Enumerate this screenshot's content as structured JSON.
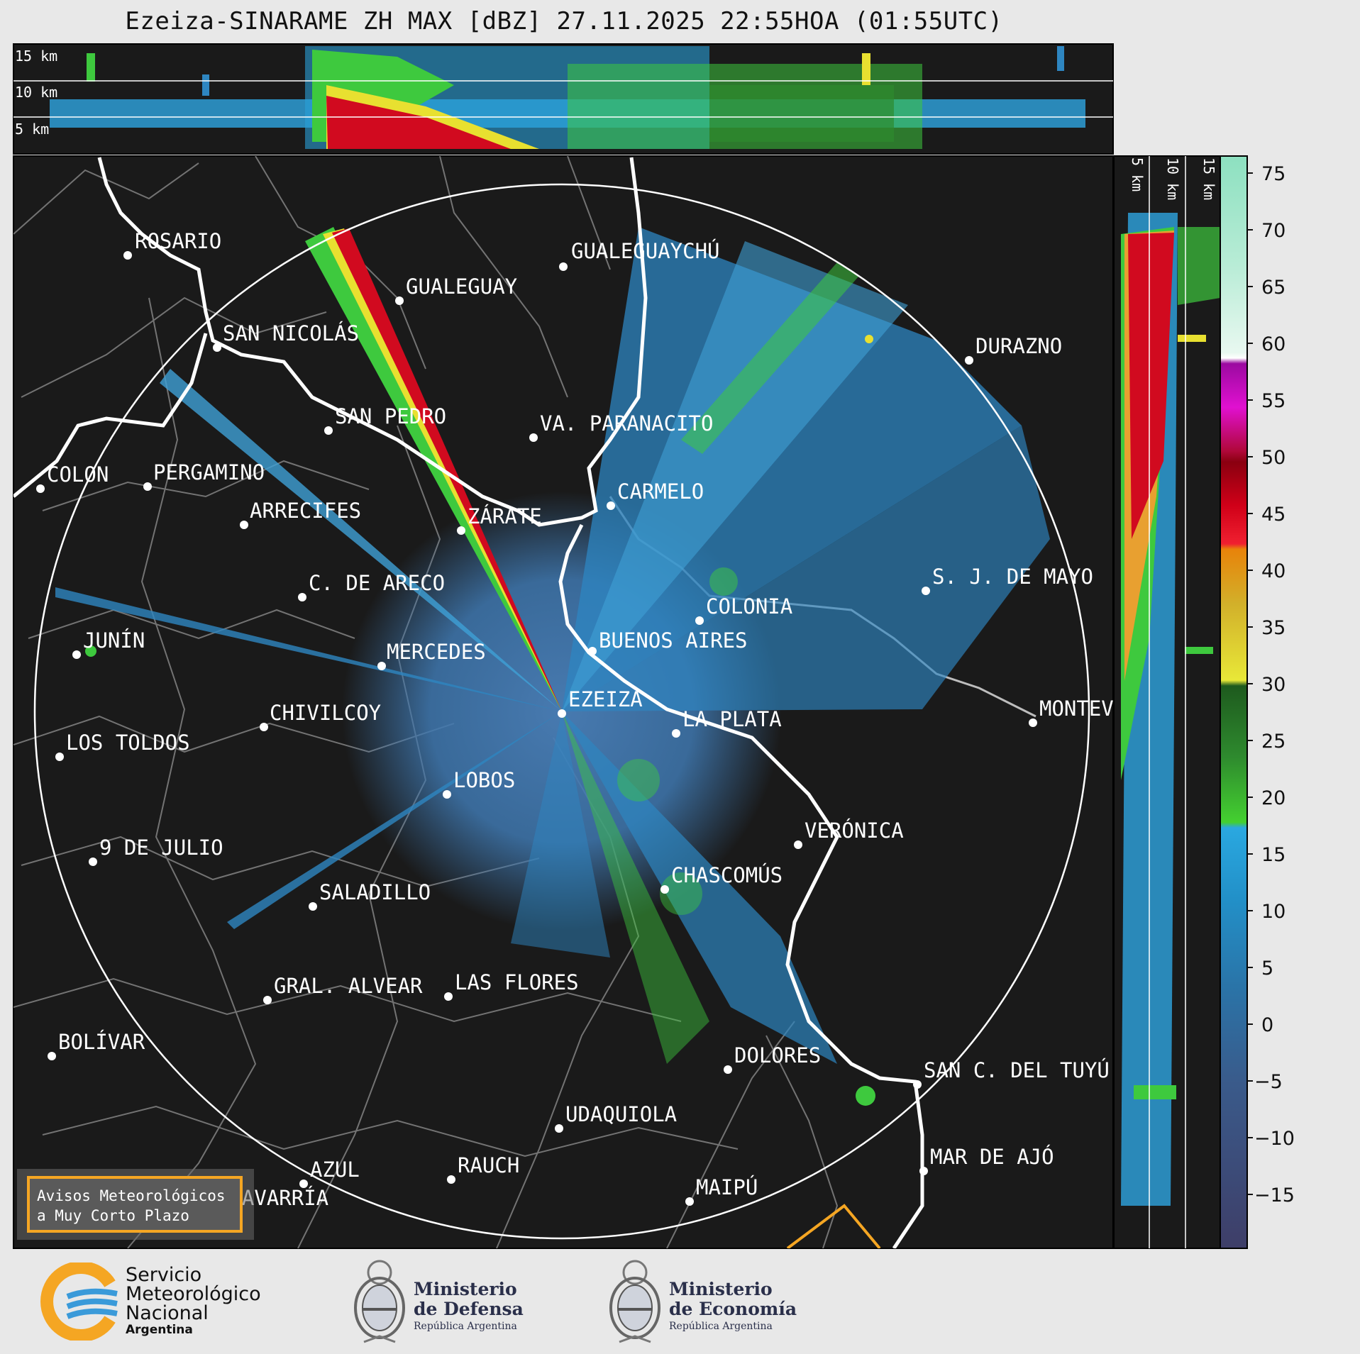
{
  "title": "Ezeiza-SINARAME ZH MAX [dBZ] 27.11.2025 22:55HOA (01:55UTC)",
  "height_labels_top": [
    "15 km",
    "10 km",
    "5 km"
  ],
  "height_labels_side": [
    "5 km",
    "10 km",
    "15 km"
  ],
  "cities": [
    {
      "name": "ROSARIO"
    },
    {
      "name": "GUALEGUAYCHÚ"
    },
    {
      "name": "GUALEGUAY"
    },
    {
      "name": "SAN NICOLÁS"
    },
    {
      "name": "DURAZNO"
    },
    {
      "name": "SAN PEDRO"
    },
    {
      "name": "VA. PARANACITO"
    },
    {
      "name": "COLON"
    },
    {
      "name": "PERGAMINO"
    },
    {
      "name": "CARMELO"
    },
    {
      "name": "ARRECIFES"
    },
    {
      "name": "ZÁRATE"
    },
    {
      "name": "S. J. DE MAYO"
    },
    {
      "name": "C. DE ARECO"
    },
    {
      "name": "COLONIA"
    },
    {
      "name": "JUNÍN"
    },
    {
      "name": "BUENOS AIRES"
    },
    {
      "name": "MERCEDES"
    },
    {
      "name": "EZEIZA"
    },
    {
      "name": "MONTEVIDEO"
    },
    {
      "name": "CHIVILCOY"
    },
    {
      "name": "LA PLATA"
    },
    {
      "name": "LOS TOLDOS"
    },
    {
      "name": "LOBOS"
    },
    {
      "name": "VERÓNICA"
    },
    {
      "name": "9 DE JULIO"
    },
    {
      "name": "CHASCOMÚS"
    },
    {
      "name": "SALADILLO"
    },
    {
      "name": "GRAL. ALVEAR"
    },
    {
      "name": "LAS FLORES"
    },
    {
      "name": "BOLÍVAR"
    },
    {
      "name": "DOLORES"
    },
    {
      "name": "SAN C. DEL TUYÚ"
    },
    {
      "name": "UDAQUIOLA"
    },
    {
      "name": "MAR DE AJÓ"
    },
    {
      "name": "AZUL"
    },
    {
      "name": "RAUCH"
    },
    {
      "name": "OLAVARRÍA"
    },
    {
      "name": "MAIPÚ"
    }
  ],
  "colorbar": {
    "unit": "dBZ",
    "ticks": [
      "75",
      "70",
      "65",
      "60",
      "55",
      "50",
      "45",
      "40",
      "35",
      "30",
      "25",
      "20",
      "15",
      "10",
      "5",
      "0",
      "−5",
      "−10",
      "−15"
    ]
  },
  "avisos_button": {
    "line1": "Avisos Meteorológicos",
    "line2": "a Muy Corto Plazo"
  },
  "logos": {
    "smn": {
      "line1": "Servicio",
      "line2": "Meteorológico",
      "line3": "Nacional",
      "line4": "Argentina"
    },
    "defensa": {
      "line1": "Ministerio",
      "line2": "de Defensa",
      "line3": "República Argentina"
    },
    "economia": {
      "line1": "Ministerio",
      "line2": "de Economía",
      "line3": "República Argentina"
    }
  },
  "colors": {
    "map_bg": "#1a1a1a",
    "radar_blue": "#2e86c1",
    "radar_light_blue": "#3fa0d6",
    "radar_green": "#3ec93e",
    "radar_yellow": "#e8e030",
    "radar_red": "#d10a1f",
    "coast": "#ffffff",
    "border": "#7d7d7d",
    "avisos_border": "#f5a623"
  }
}
